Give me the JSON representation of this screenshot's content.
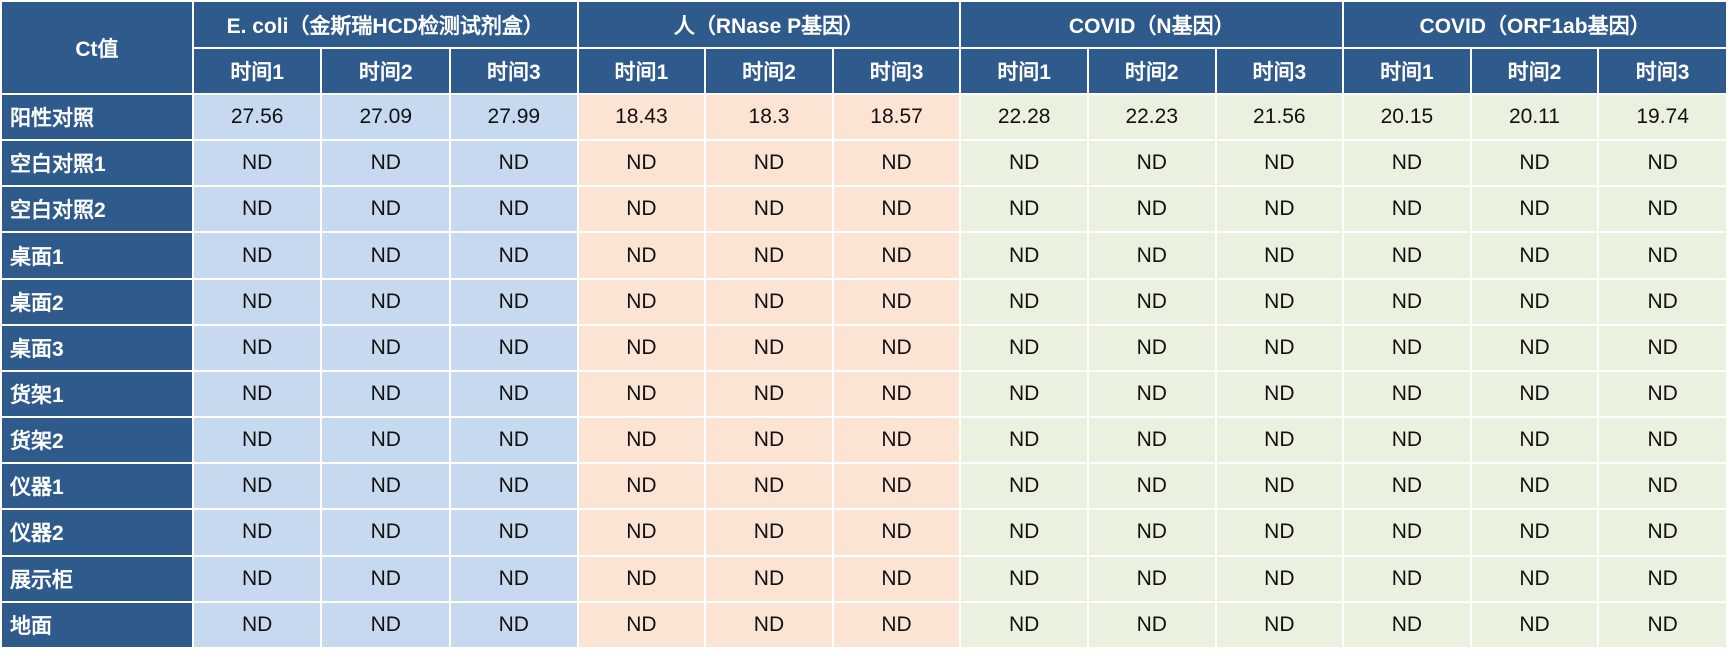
{
  "table": {
    "corner_label": "Ct值",
    "groups": [
      {
        "label": "E. coli（金斯瑞HCD检测试剂盒）",
        "color": "#c7d9ef"
      },
      {
        "label": "人（RNase P基因）",
        "color": "#fce4d5"
      },
      {
        "label": "COVID（N基因）",
        "color": "#ebf1df"
      },
      {
        "label": "COVID（ORF1ab基因）",
        "color": "#ebf1df"
      }
    ],
    "sub_headers": [
      "时间1",
      "时间2",
      "时间3"
    ],
    "rows": [
      {
        "label": "阳性对照",
        "values": [
          "27.56",
          "27.09",
          "27.99",
          "18.43",
          "18.3",
          "18.57",
          "22.28",
          "22.23",
          "21.56",
          "20.15",
          "20.11",
          "19.74"
        ]
      },
      {
        "label": "空白对照1",
        "values": [
          "ND",
          "ND",
          "ND",
          "ND",
          "ND",
          "ND",
          "ND",
          "ND",
          "ND",
          "ND",
          "ND",
          "ND"
        ]
      },
      {
        "label": "空白对照2",
        "values": [
          "ND",
          "ND",
          "ND",
          "ND",
          "ND",
          "ND",
          "ND",
          "ND",
          "ND",
          "ND",
          "ND",
          "ND"
        ]
      },
      {
        "label": "桌面1",
        "values": [
          "ND",
          "ND",
          "ND",
          "ND",
          "ND",
          "ND",
          "ND",
          "ND",
          "ND",
          "ND",
          "ND",
          "ND"
        ]
      },
      {
        "label": "桌面2",
        "values": [
          "ND",
          "ND",
          "ND",
          "ND",
          "ND",
          "ND",
          "ND",
          "ND",
          "ND",
          "ND",
          "ND",
          "ND"
        ]
      },
      {
        "label": "桌面3",
        "values": [
          "ND",
          "ND",
          "ND",
          "ND",
          "ND",
          "ND",
          "ND",
          "ND",
          "ND",
          "ND",
          "ND",
          "ND"
        ]
      },
      {
        "label": "货架1",
        "values": [
          "ND",
          "ND",
          "ND",
          "ND",
          "ND",
          "ND",
          "ND",
          "ND",
          "ND",
          "ND",
          "ND",
          "ND"
        ]
      },
      {
        "label": "货架2",
        "values": [
          "ND",
          "ND",
          "ND",
          "ND",
          "ND",
          "ND",
          "ND",
          "ND",
          "ND",
          "ND",
          "ND",
          "ND"
        ]
      },
      {
        "label": "仪器1",
        "values": [
          "ND",
          "ND",
          "ND",
          "ND",
          "ND",
          "ND",
          "ND",
          "ND",
          "ND",
          "ND",
          "ND",
          "ND"
        ]
      },
      {
        "label": "仪器2",
        "values": [
          "ND",
          "ND",
          "ND",
          "ND",
          "ND",
          "ND",
          "ND",
          "ND",
          "ND",
          "ND",
          "ND",
          "ND"
        ]
      },
      {
        "label": "展示柜",
        "values": [
          "ND",
          "ND",
          "ND",
          "ND",
          "ND",
          "ND",
          "ND",
          "ND",
          "ND",
          "ND",
          "ND",
          "ND"
        ]
      },
      {
        "label": "地面",
        "values": [
          "ND",
          "ND",
          "ND",
          "ND",
          "ND",
          "ND",
          "ND",
          "ND",
          "ND",
          "ND",
          "ND",
          "ND"
        ]
      }
    ]
  },
  "colors": {
    "header_bg": "#2f5a8c",
    "header_text": "#ffffff"
  }
}
